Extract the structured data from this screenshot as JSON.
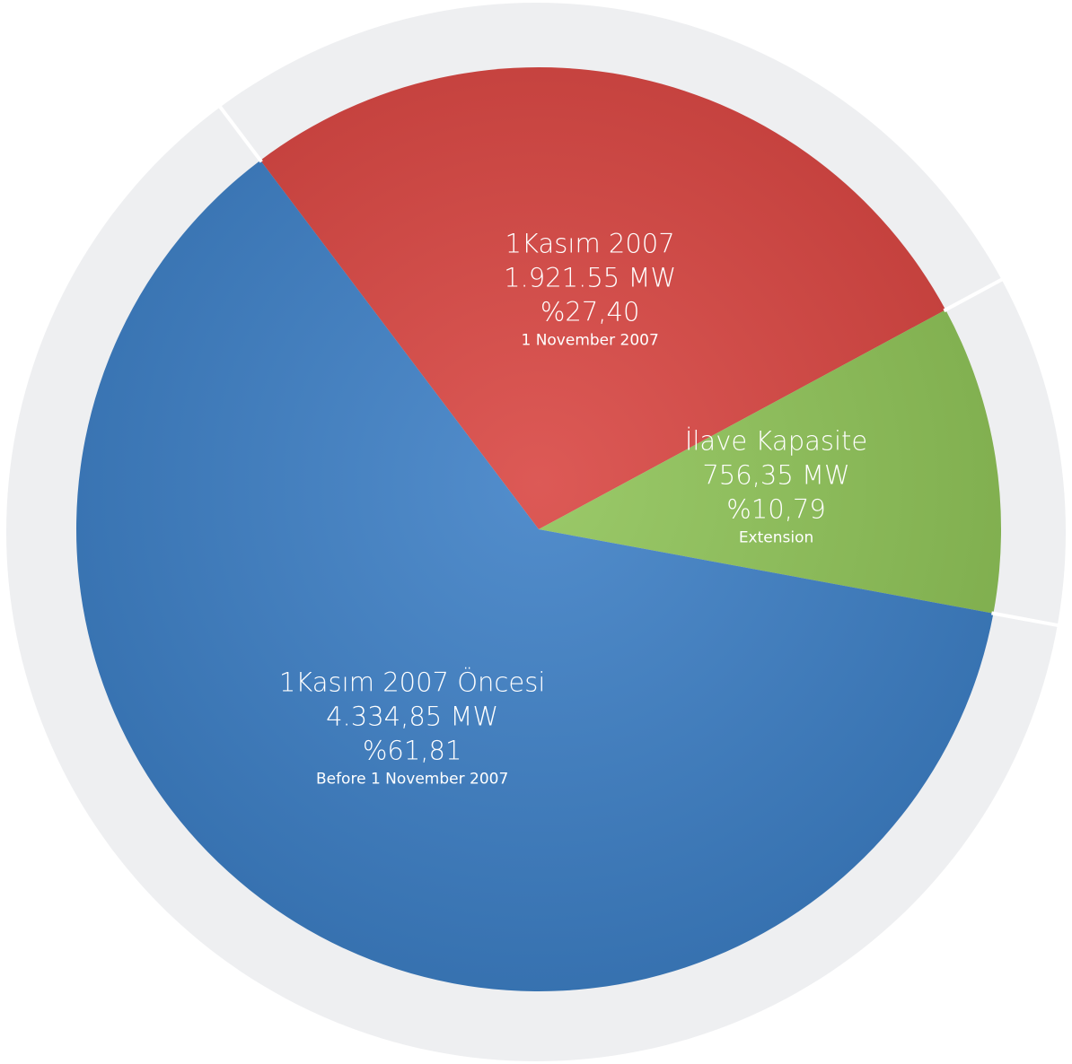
{
  "chart_data": {
    "type": "pie",
    "categories": [
      "1Kasım 2007",
      "İlave Kapasite",
      "1Kasım 2007 Öncesi"
    ],
    "subtitles": [
      "1 November 2007",
      "Extension",
      "Before 1 November 2007"
    ],
    "values": [
      27.4,
      10.79,
      61.81
    ],
    "value_labels": [
      "%27,40",
      "%10,79",
      "%61,81"
    ],
    "capacity": [
      1921.55,
      756.35,
      4334.85
    ],
    "capacity_labels": [
      "1.921.55 MW",
      "756,35 MW",
      "4.334,85 MW"
    ],
    "colors": [
      "#d8433f",
      "#8dc255",
      "#3b7ec5"
    ]
  }
}
